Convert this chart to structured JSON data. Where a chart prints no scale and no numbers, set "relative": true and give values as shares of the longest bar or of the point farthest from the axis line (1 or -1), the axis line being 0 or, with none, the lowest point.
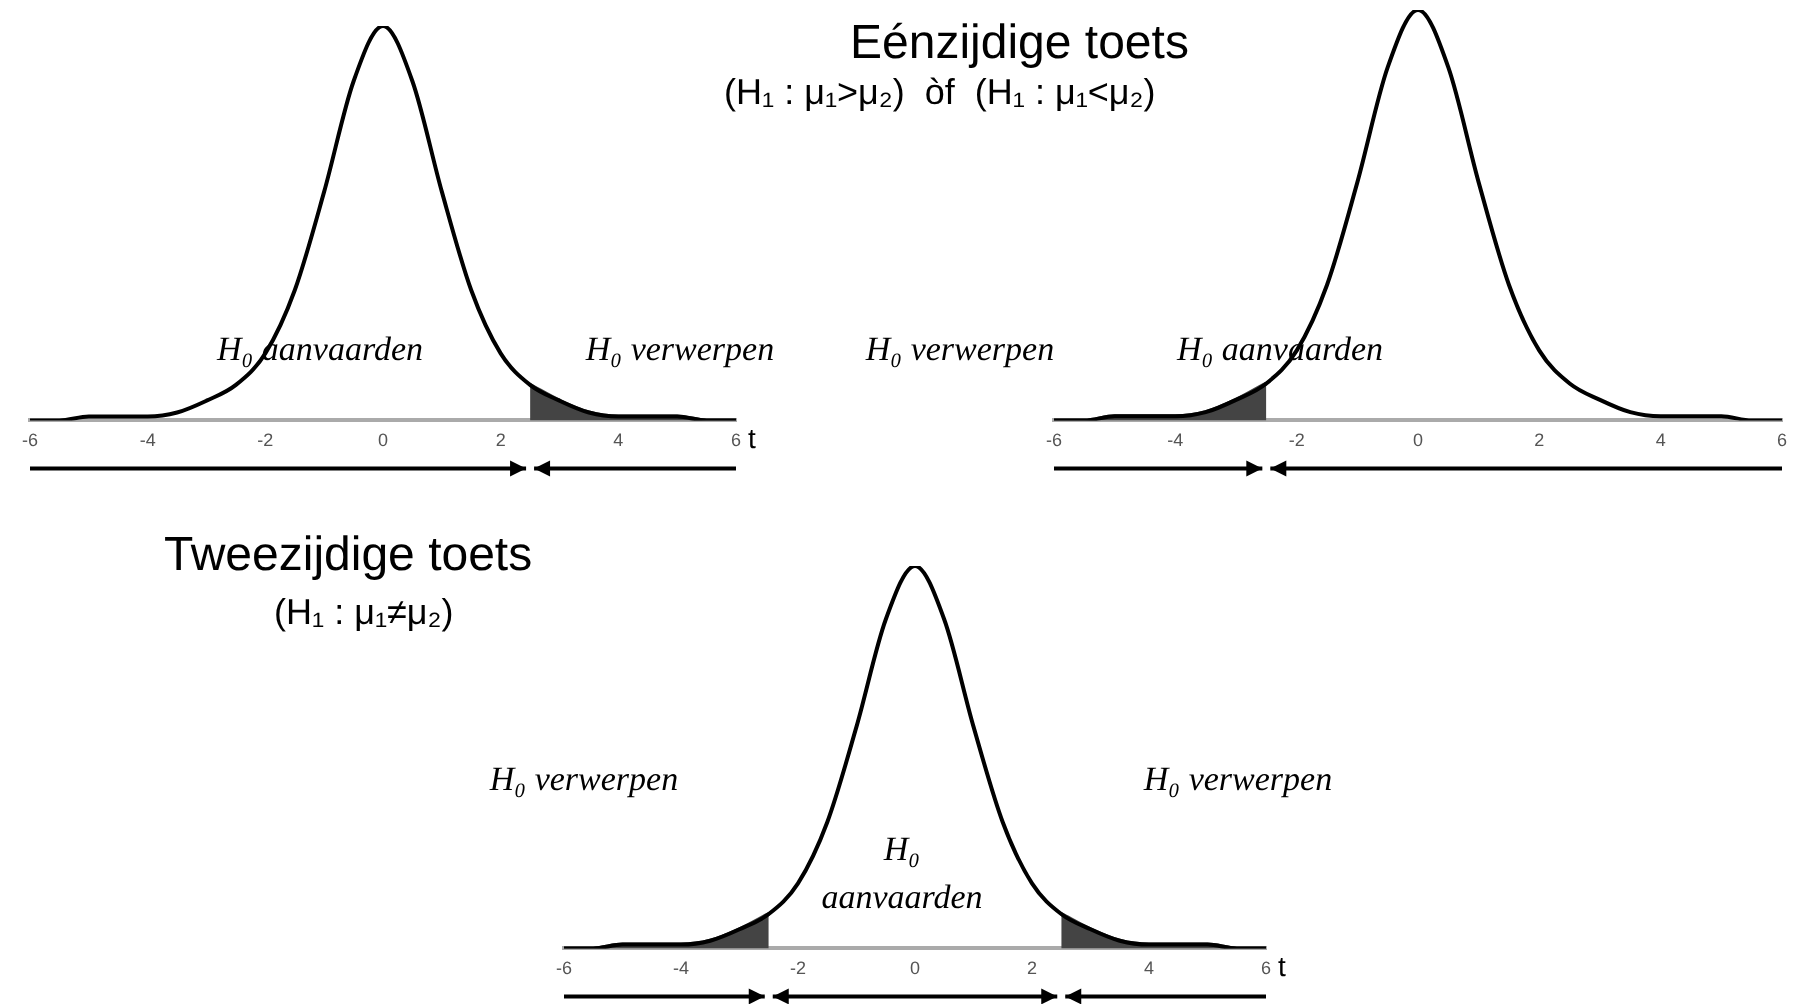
{
  "chart_data": [
    {
      "type": "line",
      "subtitle": "(H₁ : μ₁>μ₂)  òf  (H₁ : μ₁<μ₂)",
      "xlabel": "t",
      "relative": true,
      "x": [
        -6,
        -5.5,
        -5,
        -4.5,
        -4,
        -3.5,
        -3,
        -2.5,
        -2,
        -1.5,
        -1,
        -0.5,
        0,
        0.5,
        1,
        1.5,
        2,
        2.5,
        3,
        3.5,
        4,
        4.5,
        5,
        5.5,
        6
      ],
      "series": [
        {
          "color": "#000000",
          "values": [
            0,
            0,
            0.01,
            0.01,
            0.01,
            0.02,
            0.05,
            0.09,
            0.17,
            0.33,
            0.58,
            0.86,
            1,
            0.86,
            0.58,
            0.33,
            0.17,
            0.09,
            0.05,
            0.02,
            0.01,
            0.01,
            0.01,
            0,
            0
          ]
        },
        {
          "type": "area",
          "color": "#444444",
          "x": [
            2.5,
            3,
            3.5,
            4,
            4.5,
            5,
            5.5,
            6
          ],
          "values": [
            0.09,
            0.05,
            0.02,
            0.01,
            0.01,
            0.01,
            0,
            0
          ]
        }
      ],
      "xlim": [
        -6,
        6
      ],
      "xticks": [
        -6,
        -4,
        -2,
        0,
        2,
        4,
        6
      ],
      "annotations": [
        "H₀ aanvaarden",
        "H₀ verwerpen"
      ]
    },
    {
      "type": "line",
      "title": "Eénzijdige toets",
      "relative": true,
      "x": [
        -6,
        -5.5,
        -5,
        -4.5,
        -4,
        -3.5,
        -3,
        -2.5,
        -2,
        -1.5,
        -1,
        -0.5,
        0,
        0.5,
        1,
        1.5,
        2,
        2.5,
        3,
        3.5,
        4,
        4.5,
        5,
        5.5,
        6
      ],
      "series": [
        {
          "color": "#000000",
          "values": [
            0,
            0,
            0.01,
            0.01,
            0.01,
            0.02,
            0.05,
            0.09,
            0.17,
            0.33,
            0.58,
            0.86,
            1,
            0.86,
            0.58,
            0.33,
            0.17,
            0.09,
            0.05,
            0.02,
            0.01,
            0.01,
            0.01,
            0,
            0
          ]
        },
        {
          "type": "area",
          "color": "#444444",
          "x": [
            -6,
            -5.5,
            -5,
            -4.5,
            -4,
            -3.5,
            -3,
            -2.5
          ],
          "values": [
            0,
            0,
            0.01,
            0.01,
            0.01,
            0.02,
            0.05,
            0.09
          ]
        }
      ],
      "xlim": [
        -6,
        6
      ],
      "xticks": [
        -6,
        -4,
        -2,
        0,
        2,
        4,
        6
      ],
      "annotations": [
        "H₀ verwerpen",
        "H₀ aanvaarden"
      ]
    },
    {
      "type": "line",
      "title": "Tweezijdige toets",
      "subtitle": "(H₁ : μ₁≠μ₂)",
      "xlabel": "t",
      "relative": true,
      "x": [
        -6,
        -5.5,
        -5,
        -4.5,
        -4,
        -3.5,
        -3,
        -2.5,
        -2,
        -1.5,
        -1,
        -0.5,
        0,
        0.5,
        1,
        1.5,
        2,
        2.5,
        3,
        3.5,
        4,
        4.5,
        5,
        5.5,
        6
      ],
      "series": [
        {
          "color": "#000000",
          "values": [
            0,
            0,
            0.01,
            0.01,
            0.01,
            0.02,
            0.05,
            0.09,
            0.17,
            0.33,
            0.58,
            0.86,
            1,
            0.86,
            0.58,
            0.33,
            0.17,
            0.09,
            0.05,
            0.02,
            0.01,
            0.01,
            0.01,
            0,
            0
          ]
        },
        {
          "type": "area",
          "color": "#444444",
          "x": [
            -6,
            -5.5,
            -5,
            -4.5,
            -4,
            -3.5,
            -3,
            -2.5
          ],
          "values": [
            0,
            0,
            0.01,
            0.01,
            0.01,
            0.02,
            0.05,
            0.09
          ]
        },
        {
          "type": "area",
          "color": "#444444",
          "x": [
            2.5,
            3,
            3.5,
            4,
            4.5,
            5,
            5.5,
            6
          ],
          "values": [
            0.09,
            0.05,
            0.02,
            0.01,
            0.01,
            0.01,
            0,
            0
          ]
        }
      ],
      "xlim": [
        -6,
        6
      ],
      "xticks": [
        -6,
        -4,
        -2,
        0,
        2,
        4,
        6
      ],
      "annotations": [
        "H₀ verwerpen",
        "H₀ verwerpen",
        "H₀ aanvaarden"
      ]
    }
  ]
}
